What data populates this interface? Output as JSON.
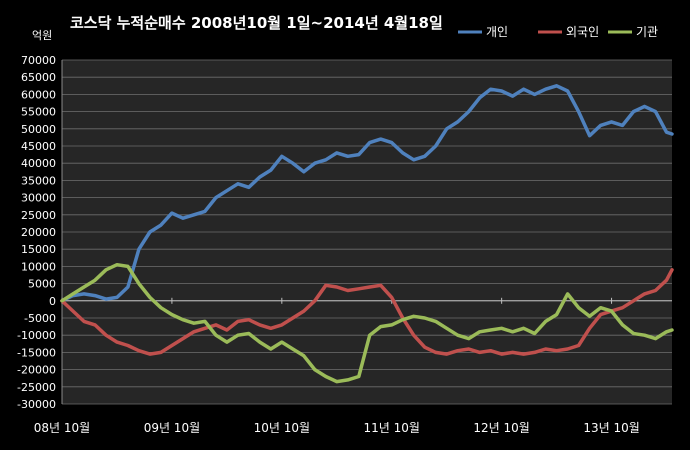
{
  "chart_data": {
    "type": "line",
    "title": "코스닥  누적순매수 2008년10월 1일~2014년 4월18일",
    "ylabel": "억원",
    "xlabel": "",
    "ylim": [
      -30000,
      70000
    ],
    "y_ticks": [
      70000,
      65000,
      60000,
      55000,
      50000,
      45000,
      40000,
      35000,
      30000,
      25000,
      20000,
      15000,
      10000,
      5000,
      0,
      -5000,
      -10000,
      -15000,
      -20000,
      -25000,
      -30000
    ],
    "x_tick_labels": [
      "08년 10월",
      "09년 10월",
      "10년 10월",
      "11년 10월",
      "12년 10월",
      "13년 10월"
    ],
    "x_tick_positions": [
      0,
      1,
      2,
      3,
      4,
      5
    ],
    "xlim": [
      0,
      5.55
    ],
    "grid": true,
    "legend_position": "top-right",
    "background": "#000000",
    "plot_background": "#262626",
    "series": [
      {
        "name": "개인",
        "color": "#4f81bd",
        "x": [
          0,
          0.1,
          0.2,
          0.3,
          0.4,
          0.5,
          0.6,
          0.7,
          0.8,
          0.9,
          1.0,
          1.1,
          1.2,
          1.3,
          1.4,
          1.5,
          1.6,
          1.7,
          1.8,
          1.9,
          2.0,
          2.1,
          2.2,
          2.3,
          2.4,
          2.5,
          2.6,
          2.7,
          2.8,
          2.9,
          3.0,
          3.1,
          3.2,
          3.3,
          3.4,
          3.5,
          3.6,
          3.7,
          3.8,
          3.9,
          4.0,
          4.1,
          4.2,
          4.3,
          4.4,
          4.5,
          4.6,
          4.7,
          4.8,
          4.9,
          5.0,
          5.1,
          5.2,
          5.3,
          5.4,
          5.5,
          5.55
        ],
        "values": [
          0,
          1500,
          2000,
          1500,
          500,
          1000,
          4000,
          15000,
          20000,
          22000,
          25500,
          24000,
          25000,
          26000,
          30000,
          32000,
          34000,
          33000,
          36000,
          38000,
          42000,
          40000,
          37500,
          40000,
          41000,
          43000,
          42000,
          42500,
          46000,
          47000,
          46000,
          43000,
          41000,
          42000,
          45000,
          50000,
          52000,
          55000,
          59000,
          61500,
          61000,
          59500,
          61500,
          60000,
          61500,
          62500,
          61000,
          55000,
          48000,
          51000,
          52000,
          51000,
          55000,
          56500,
          55000,
          49000,
          48500
        ]
      },
      {
        "name": "외국인",
        "color": "#c0504d",
        "x": [
          0,
          0.1,
          0.2,
          0.3,
          0.4,
          0.5,
          0.6,
          0.7,
          0.8,
          0.9,
          1.0,
          1.1,
          1.2,
          1.3,
          1.4,
          1.5,
          1.6,
          1.7,
          1.8,
          1.9,
          2.0,
          2.1,
          2.2,
          2.3,
          2.4,
          2.5,
          2.6,
          2.7,
          2.8,
          2.9,
          3.0,
          3.1,
          3.2,
          3.3,
          3.4,
          3.5,
          3.6,
          3.7,
          3.8,
          3.9,
          4.0,
          4.1,
          4.2,
          4.3,
          4.4,
          4.5,
          4.6,
          4.7,
          4.8,
          4.9,
          5.0,
          5.1,
          5.2,
          5.3,
          5.4,
          5.5,
          5.55
        ],
        "values": [
          0,
          -3000,
          -6000,
          -7000,
          -10000,
          -12000,
          -13000,
          -14500,
          -15500,
          -15000,
          -13000,
          -11000,
          -9000,
          -8000,
          -7000,
          -8500,
          -6000,
          -5500,
          -7000,
          -8000,
          -7000,
          -5000,
          -3000,
          0,
          4500,
          4000,
          3000,
          3500,
          4000,
          4500,
          1000,
          -5000,
          -10000,
          -13500,
          -15000,
          -15500,
          -14500,
          -14000,
          -15000,
          -14500,
          -15500,
          -15000,
          -15500,
          -15000,
          -14000,
          -14500,
          -14000,
          -13000,
          -8000,
          -4000,
          -3000,
          -2000,
          0,
          2000,
          3000,
          6000,
          9000
        ]
      },
      {
        "name": "기관",
        "color": "#9bbb59",
        "x": [
          0,
          0.1,
          0.2,
          0.3,
          0.4,
          0.5,
          0.6,
          0.7,
          0.8,
          0.9,
          1.0,
          1.1,
          1.2,
          1.3,
          1.4,
          1.5,
          1.6,
          1.7,
          1.8,
          1.9,
          2.0,
          2.1,
          2.2,
          2.3,
          2.4,
          2.5,
          2.6,
          2.7,
          2.8,
          2.9,
          3.0,
          3.1,
          3.2,
          3.3,
          3.4,
          3.5,
          3.6,
          3.7,
          3.8,
          3.9,
          4.0,
          4.1,
          4.2,
          4.3,
          4.4,
          4.5,
          4.6,
          4.7,
          4.8,
          4.9,
          5.0,
          5.1,
          5.2,
          5.3,
          5.4,
          5.5,
          5.55
        ],
        "values": [
          0,
          2000,
          4000,
          6000,
          9000,
          10500,
          10000,
          5000,
          1000,
          -2000,
          -4000,
          -5500,
          -6500,
          -6000,
          -10000,
          -12000,
          -10000,
          -9500,
          -12000,
          -14000,
          -12000,
          -14000,
          -16000,
          -20000,
          -22000,
          -23500,
          -23000,
          -22000,
          -10000,
          -7500,
          -7000,
          -5500,
          -4500,
          -5000,
          -6000,
          -8000,
          -10000,
          -11000,
          -9000,
          -8500,
          -8000,
          -9000,
          -8000,
          -9500,
          -6000,
          -4000,
          2000,
          -2000,
          -4500,
          -2000,
          -3000,
          -7000,
          -9500,
          -10000,
          -11000,
          -9000,
          -8500
        ]
      }
    ]
  }
}
